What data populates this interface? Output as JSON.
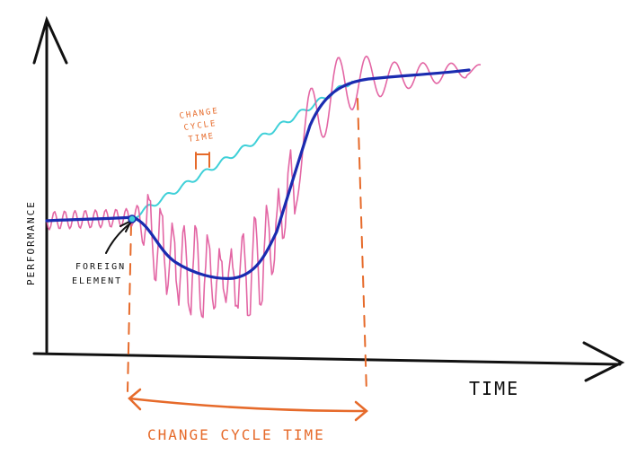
{
  "labels": {
    "y_axis": "PERFORMANCE",
    "x_axis": "TIME",
    "change_cycle_time": "CHANGE CYCLE TIME",
    "foreign_element_line1": "FOREIGN",
    "foreign_element_line2": "ELEMENT",
    "small_change_line1": "CHANGE",
    "small_change_line2": "CYCLE",
    "small_change_line3": "TIME"
  },
  "colors": {
    "axis": "#111111",
    "dark_blue": "#1a2bb0",
    "cyan": "#3fd0d8",
    "pink": "#e0559a",
    "orange": "#e66a2a",
    "label_black": "#111111"
  }
}
